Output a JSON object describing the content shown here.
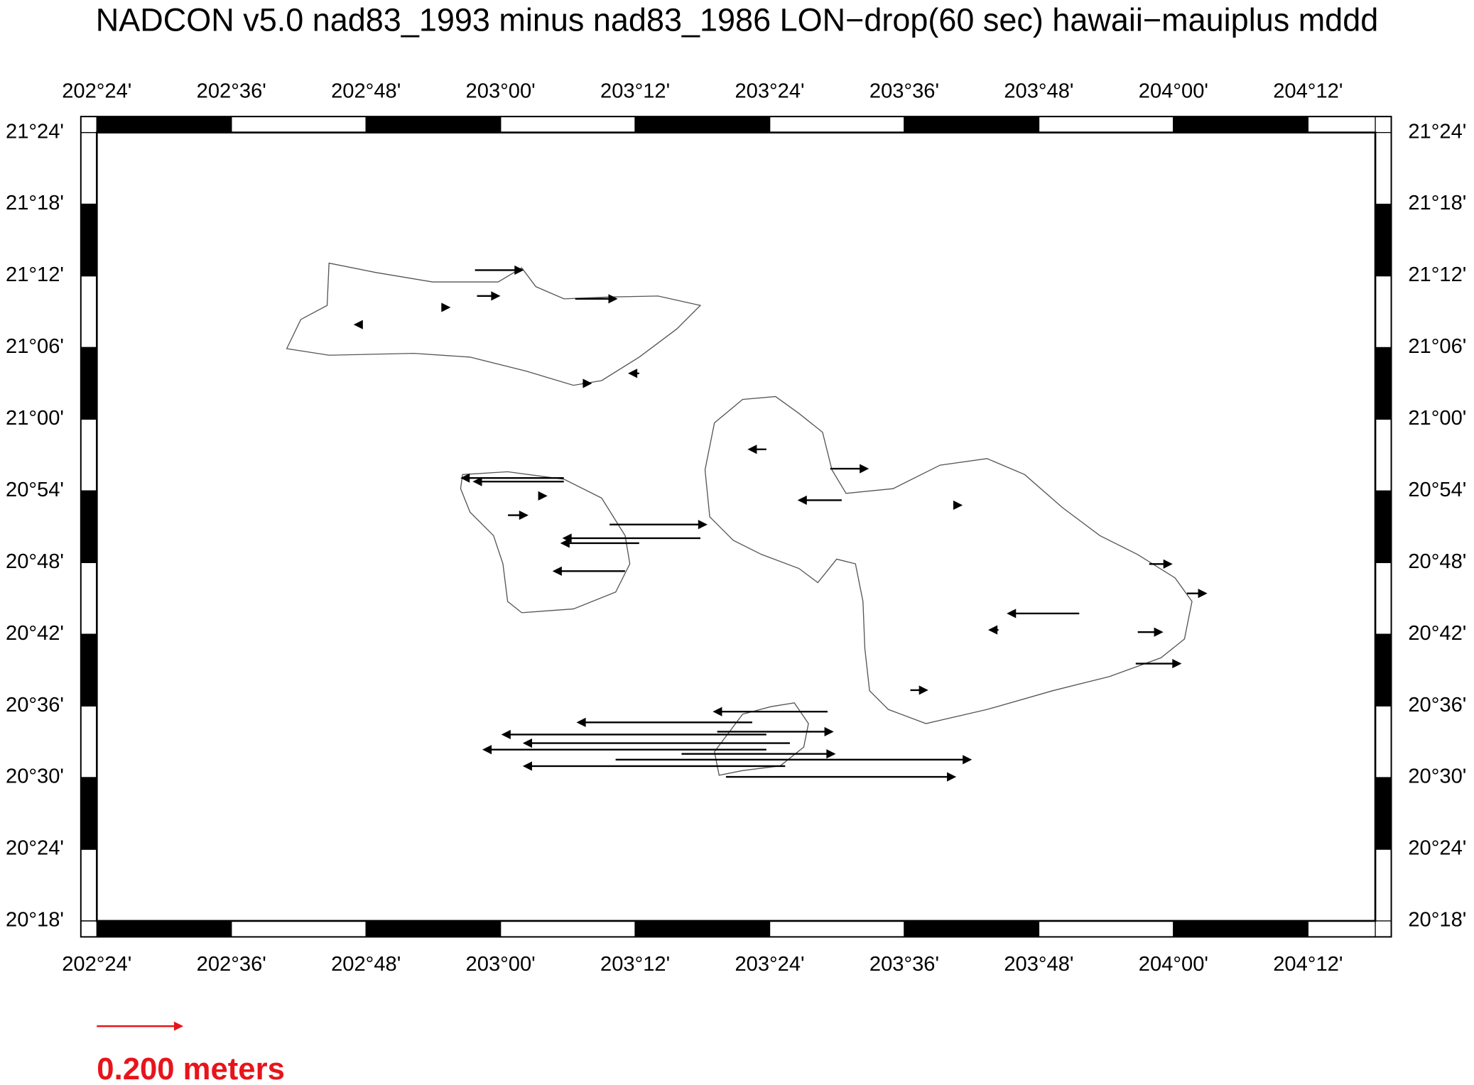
{
  "map": {
    "title": "NADCON v5.0 nad83_1993 minus nad83_1986 LON−drop(60 sec) hawaii−mauiplus mddd",
    "xlim": [
      202.4,
      204.3
    ],
    "ylim": [
      20.3,
      21.4
    ],
    "xticks": [
      {
        "value": 202.4,
        "label": "202°24'"
      },
      {
        "value": 202.6,
        "label": "202°36'"
      },
      {
        "value": 202.8,
        "label": "202°48'"
      },
      {
        "value": 203.0,
        "label": "203°00'"
      },
      {
        "value": 203.2,
        "label": "203°12'"
      },
      {
        "value": 203.4,
        "label": "203°24'"
      },
      {
        "value": 203.6,
        "label": "203°36'"
      },
      {
        "value": 203.8,
        "label": "203°48'"
      },
      {
        "value": 204.0,
        "label": "204°00'"
      },
      {
        "value": 204.2,
        "label": "204°12'"
      }
    ],
    "yticks": [
      {
        "value": 20.3,
        "label": "20°18'"
      },
      {
        "value": 20.4,
        "label": "20°24'"
      },
      {
        "value": 20.5,
        "label": "20°30'"
      },
      {
        "value": 20.6,
        "label": "20°36'"
      },
      {
        "value": 20.7,
        "label": "20°42'"
      },
      {
        "value": 20.8,
        "label": "20°48'"
      },
      {
        "value": 20.9,
        "label": "20°54'"
      },
      {
        "value": 21.0,
        "label": "21°00'"
      },
      {
        "value": 21.1,
        "label": "21°06'"
      },
      {
        "value": 21.2,
        "label": "21°12'"
      },
      {
        "value": 21.3,
        "label": "21°18'"
      },
      {
        "value": 21.4,
        "label": "21°24'"
      }
    ],
    "arrows": {
      "color": "#000000",
      "lon": [
        202.962,
        202.965,
        203.111,
        203.094,
        203.094,
        203.162,
        203.297,
        203.206,
        203.185,
        203.011,
        203.395,
        203.49,
        203.507,
        203.86,
        203.964,
        204.02,
        203.944,
        203.947,
        203.486,
        203.374,
        203.322,
        203.395,
        203.43,
        203.395,
        203.171,
        203.423,
        203.335,
        203.269,
        202.913,
        202.79,
        203.206,
        203.06,
        203.677,
        203.74,
        203.609,
        203.122
      ],
      "lat": [
        21.208,
        21.172,
        21.168,
        20.918,
        20.913,
        20.853,
        20.834,
        20.827,
        20.788,
        20.866,
        20.958,
        20.931,
        20.887,
        20.729,
        20.798,
        20.757,
        20.659,
        20.703,
        20.592,
        20.577,
        20.564,
        20.56,
        20.548,
        20.539,
        20.525,
        20.516,
        20.501,
        20.533,
        21.156,
        21.132,
        21.064,
        20.893,
        20.88,
        20.706,
        20.622,
        21.05
      ],
      "dx_m": [
        0.111,
        0.051,
        0.096,
        -0.24,
        -0.211,
        0.227,
        -0.322,
        -0.182,
        -0.167,
        0.044,
        -0.04,
        0.087,
        -0.1,
        -0.167,
        0.051,
        0.044,
        0.104,
        0.056,
        -0.267,
        -0.411,
        0.271,
        -0.622,
        -0.627,
        -0.667,
        0.838,
        -0.616,
        0.54,
        0.36,
        0.016,
        -0.009,
        -0.022,
        0.011,
        0.011,
        -0.02,
        0.038,
        0.018
      ]
    },
    "scale": {
      "value": 0.2,
      "label": "0.200 meters",
      "color": "#e8141b"
    }
  }
}
